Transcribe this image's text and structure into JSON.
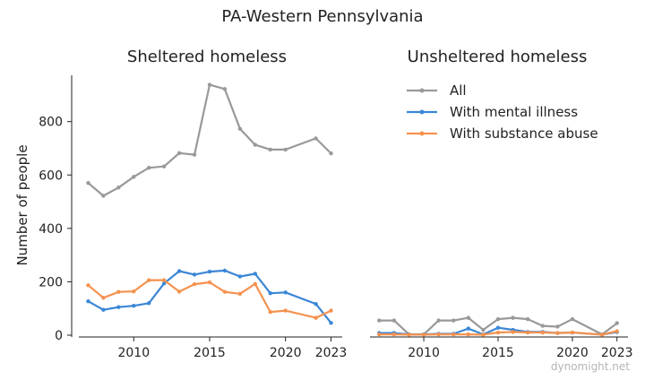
{
  "figure": {
    "title": "PA-Western Pennsylvania",
    "watermark": "dynomight.net"
  },
  "chart_data": [
    {
      "type": "line",
      "title": "Sheltered homeless",
      "ylabel": "Number of people",
      "xlabel": "",
      "xlim": [
        2006.5,
        2023.5
      ],
      "ylim": [
        0,
        960
      ],
      "xticks": [
        2010,
        2015,
        2020,
        2023
      ],
      "yticks": [
        0,
        200,
        400,
        600,
        800
      ],
      "grid": false,
      "x": [
        2007,
        2008,
        2009,
        2010,
        2011,
        2012,
        2013,
        2014,
        2015,
        2016,
        2017,
        2018,
        2019,
        2020,
        2022,
        2023
      ],
      "series": [
        {
          "name": "All",
          "color": "#999999",
          "values": [
            570,
            522,
            553,
            593,
            627,
            632,
            682,
            676,
            938,
            922,
            773,
            713,
            695,
            695,
            737,
            681
          ]
        },
        {
          "name": "With mental illness",
          "color": "#3b86d6",
          "values": [
            127,
            95,
            105,
            110,
            120,
            194,
            240,
            227,
            238,
            242,
            220,
            230,
            157,
            160,
            117,
            46
          ]
        },
        {
          "name": "With substance abuse",
          "color": "#f5924f",
          "values": [
            187,
            140,
            162,
            164,
            206,
            206,
            163,
            191,
            198,
            162,
            155,
            192,
            87,
            92,
            65,
            92
          ]
        }
      ]
    },
    {
      "type": "line",
      "title": "Unsheltered homeless",
      "ylabel": "",
      "xlabel": "",
      "xlim": [
        2006.5,
        2023.5
      ],
      "ylim": [
        0,
        960
      ],
      "xticks": [
        2010,
        2015,
        2020,
        2023
      ],
      "yticks": [],
      "grid": false,
      "legend": "top-right",
      "x": [
        2007,
        2008,
        2009,
        2010,
        2011,
        2012,
        2013,
        2014,
        2015,
        2016,
        2017,
        2018,
        2019,
        2020,
        2022,
        2023
      ],
      "series": [
        {
          "name": "All",
          "color": "#999999",
          "values": [
            55,
            55,
            3,
            3,
            55,
            55,
            65,
            20,
            60,
            65,
            60,
            35,
            32,
            60,
            3,
            45
          ]
        },
        {
          "name": "With mental illness",
          "color": "#3b86d6",
          "values": [
            8,
            8,
            3,
            3,
            5,
            5,
            25,
            3,
            28,
            20,
            12,
            12,
            8,
            10,
            2,
            12
          ]
        },
        {
          "name": "With substance abuse",
          "color": "#f5924f",
          "values": [
            3,
            3,
            2,
            2,
            3,
            3,
            3,
            2,
            10,
            12,
            10,
            10,
            8,
            10,
            2,
            15
          ]
        }
      ]
    }
  ]
}
